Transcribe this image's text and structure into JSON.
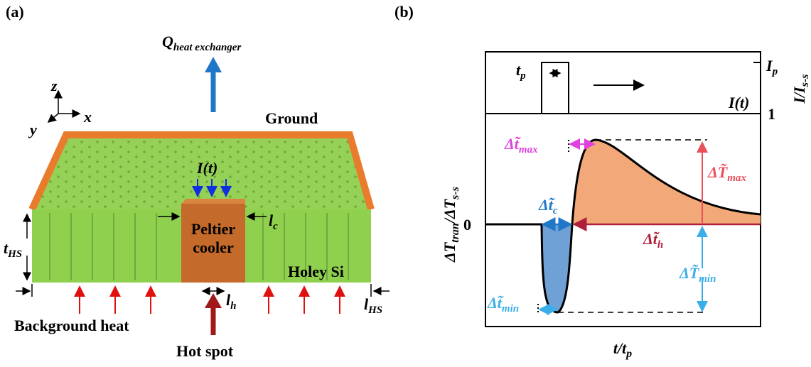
{
  "panel_a": {
    "label": "(a)",
    "heat_exchanger": {
      "base": "Q",
      "sub": "heat exchanger"
    },
    "axes": {
      "z": "z",
      "x": "x",
      "y": "y"
    },
    "ground": "Ground",
    "current": "I(t)",
    "peltier": [
      "Peltier",
      "cooler"
    ],
    "l_c": {
      "base": "l",
      "sub": "c"
    },
    "t_hs": {
      "base": "t",
      "sub": "HS"
    },
    "holey_si": "Holey Si",
    "l_h": {
      "base": "l",
      "sub": "h"
    },
    "l_hs": {
      "base": "l",
      "sub": "HS"
    },
    "background_heat": "Background heat",
    "hot_spot": "Hot spot"
  },
  "panel_b": {
    "label": "(b)",
    "t_p": {
      "base": "t",
      "sub": "p"
    },
    "i_p": {
      "base": "I",
      "sub": "p"
    },
    "right_axis": {
      "base": "I/I",
      "sub": "s-s"
    },
    "current": "I(t)",
    "tick_1": "1",
    "tick_0": "0",
    "dt_max": {
      "base": "Δt̃",
      "sub": "max"
    },
    "dT_max": {
      "base": "ΔT̃",
      "sub": "max"
    },
    "dt_c": {
      "base": "Δt̃",
      "sub": "c"
    },
    "dt_h": {
      "base": "Δt̃",
      "sub": "h"
    },
    "dT_min": {
      "base": "ΔT̃",
      "sub": "min"
    },
    "dt_min": {
      "base": "Δt̃",
      "sub": "min"
    },
    "y_label": {
      "base": "ΔT",
      "sub": "tran",
      "base2": "/ΔT",
      "sub2": "s-s"
    },
    "x_label": {
      "base": "t/t",
      "sub": "p"
    }
  }
}
